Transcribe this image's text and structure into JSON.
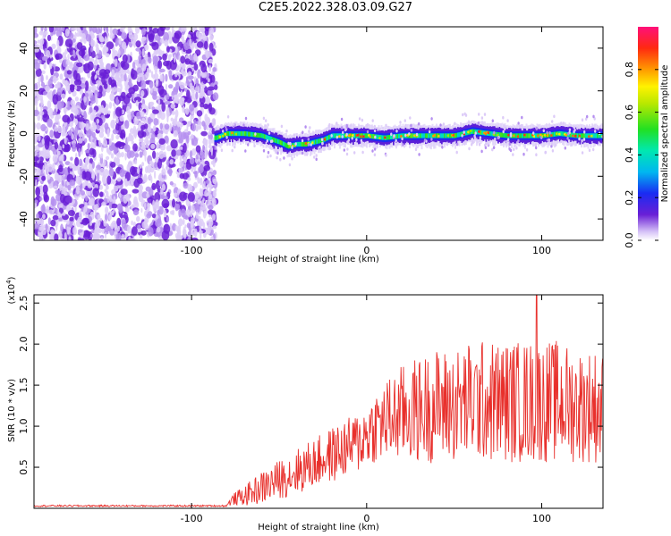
{
  "title": "C2E5.2022.328.03.09.G27",
  "chart_data": [
    {
      "type": "heatmap",
      "xlabel": "Height of straight line (km)",
      "ylabel": "Frequency (Hz)",
      "xlim": [
        -190,
        135
      ],
      "ylim": [
        -50,
        50
      ],
      "x_ticks": [
        -100,
        0,
        100
      ],
      "y_ticks": [
        -40,
        -20,
        0,
        20,
        40
      ],
      "noise_region_x": [
        -190,
        -86
      ],
      "signal_region_x": [
        -86,
        135
      ],
      "signal_frequency_track": {
        "x": [
          -86,
          -80,
          -70,
          -60,
          -50,
          -45,
          -40,
          -35,
          -30,
          -25,
          -20,
          -15,
          -10,
          0,
          10,
          20,
          30,
          40,
          50,
          60,
          70,
          80,
          90,
          100,
          110,
          120,
          130,
          135
        ],
        "y": [
          -2,
          0,
          0,
          -1,
          -4,
          -6,
          -5,
          -5,
          -4,
          -3,
          -1,
          -1,
          -1,
          -1,
          -2,
          -1,
          -1,
          -1,
          -1,
          1,
          0,
          -1,
          -1,
          -1,
          0,
          -1,
          -1,
          -1
        ]
      },
      "colorbar": {
        "label": "Normalized spectral amplitude",
        "range": [
          0.0,
          1.0
        ],
        "ticks": [
          0.0,
          0.2,
          0.4,
          0.6,
          0.8
        ],
        "tick_labels": [
          "0.0",
          "0.2",
          "0.4",
          "0.6",
          "0.8"
        ]
      }
    },
    {
      "type": "line",
      "xlabel": "Height of straight line (km)",
      "ylabel": "SNR (10 * v/v)",
      "y_multiplier": "(x10",
      "y_multiplier_exp": "4",
      "y_multiplier_close": ")",
      "xlim": [
        -190,
        135
      ],
      "ylim": [
        0,
        26000
      ],
      "x_ticks": [
        -100,
        0,
        100
      ],
      "y_ticks": [
        5000,
        10000,
        15000,
        20000,
        25000
      ],
      "y_tick_labels": [
        "0.5",
        "1.0",
        "1.5",
        "2.0",
        "2.5"
      ],
      "line_color": "#e8302c",
      "envelope": {
        "x": [
          -190,
          -80,
          -78,
          -75,
          -70,
          -65,
          -60,
          -55,
          -50,
          -45,
          -40,
          -35,
          -30,
          -25,
          -20,
          -15,
          -10,
          -5,
          0,
          5,
          10,
          15,
          20,
          30,
          40,
          50,
          60,
          70,
          80,
          90,
          100,
          110,
          120,
          130,
          135
        ],
        "mean": [
          300,
          300,
          800,
          1200,
          1500,
          2000,
          2500,
          3000,
          3500,
          4000,
          4500,
          5000,
          5500,
          6000,
          6500,
          7000,
          7500,
          8000,
          9000,
          10000,
          10500,
          11000,
          11500,
          12000,
          12500,
          12500,
          13000,
          13000,
          13000,
          13000,
          13000,
          13000,
          12500,
          12500,
          12000
        ],
        "spread": [
          100,
          100,
          500,
          800,
          1200,
          1600,
          2000,
          2200,
          2400,
          2600,
          2800,
          3000,
          3000,
          3200,
          3400,
          3500,
          3600,
          3800,
          4000,
          4500,
          5000,
          5500,
          6000,
          6500,
          7000,
          7000,
          7500,
          7500,
          7500,
          7500,
          7500,
          7500,
          7000,
          7000,
          7000
        ]
      },
      "peak": {
        "x": 97,
        "y": 26000
      }
    }
  ]
}
